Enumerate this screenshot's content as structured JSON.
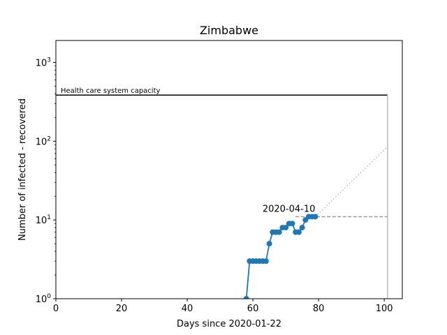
{
  "chart_data": {
    "type": "line",
    "title": "Zimbabwe",
    "xlabel": "Days since 2020-01-22",
    "ylabel": "Number of infected - recovered",
    "xlim": [
      0,
      105.5
    ],
    "ylim": [
      1,
      1900
    ],
    "yscale": "log",
    "grid": false,
    "x_ticks": [
      0,
      20,
      40,
      60,
      80,
      100
    ],
    "x_tick_labels": [
      "0",
      "20",
      "40",
      "60",
      "80",
      "100"
    ],
    "y_ticks": [
      1,
      10,
      100,
      1000
    ],
    "y_tick_labels": [
      {
        "base": "10",
        "exp": "0"
      },
      {
        "base": "10",
        "exp": "1"
      },
      {
        "base": "10",
        "exp": "2"
      },
      {
        "base": "10",
        "exp": "3"
      }
    ],
    "series": [
      {
        "type": "line-markers",
        "color": "#1f77b4",
        "x": [
          0,
          58,
          59,
          60,
          61,
          62,
          63,
          64,
          65,
          66,
          67,
          68,
          69,
          70,
          71,
          72,
          73,
          74,
          75,
          76,
          77,
          78,
          79
        ],
        "y": [
          0,
          1,
          3,
          3,
          3,
          3,
          3,
          3,
          5,
          7,
          7,
          7,
          8,
          8,
          9,
          9,
          7,
          7,
          8,
          10,
          11,
          11,
          11
        ]
      },
      {
        "type": "dotted-projection",
        "color": "#bbbbbb",
        "x": [
          79,
          101
        ],
        "y": [
          11,
          85
        ]
      },
      {
        "type": "dashed-flat",
        "color": "#999999",
        "x": [
          73,
          101
        ],
        "y": [
          11,
          11
        ]
      }
    ],
    "capacity": {
      "label": "Health care system capacity",
      "y": 385,
      "x_start": 0,
      "x_end": 101,
      "color": "#000000"
    },
    "vertical_marker": {
      "x": 101,
      "color": "#bbbbbb"
    },
    "annotations": [
      {
        "text": "2020-04-10",
        "x": 79,
        "y": 11
      }
    ]
  }
}
